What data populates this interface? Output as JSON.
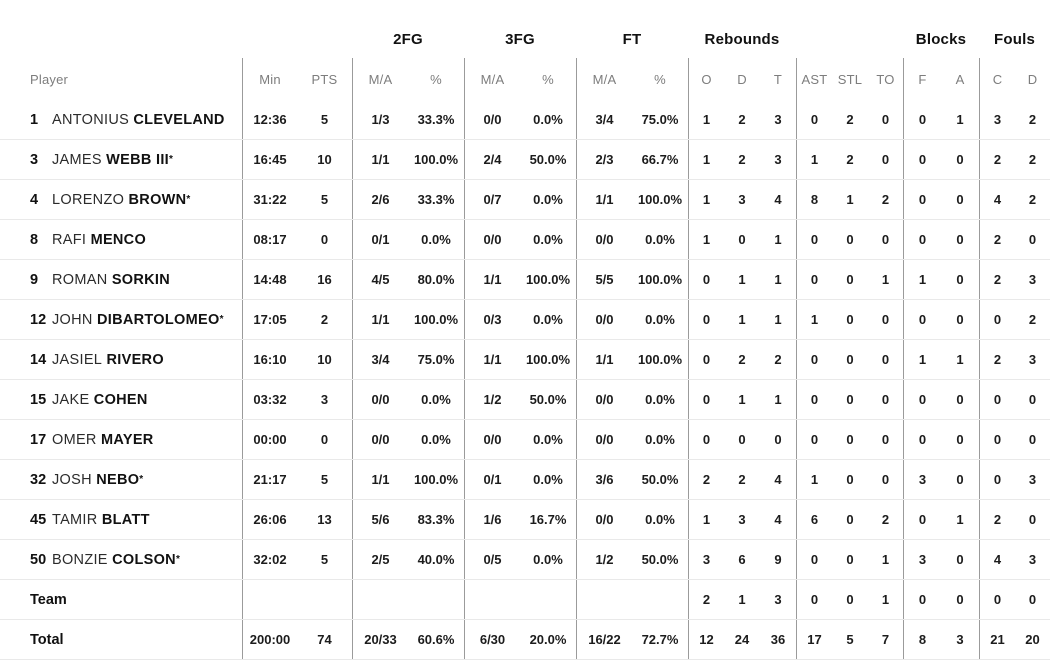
{
  "table": {
    "group_headers": {
      "fg2": "2FG",
      "fg3": "3FG",
      "ft": "FT",
      "rebounds": "Rebounds",
      "blocks": "Blocks",
      "fouls": "Fouls"
    },
    "sub_headers": {
      "player": "Player",
      "min": "Min",
      "pts": "PTS",
      "fg2_ma": "M/A",
      "fg2_pct": "%",
      "fg3_ma": "M/A",
      "fg3_pct": "%",
      "ft_ma": "M/A",
      "ft_pct": "%",
      "reb_o": "O",
      "reb_d": "D",
      "reb_t": "T",
      "ast": "AST",
      "stl": "STL",
      "to": "TO",
      "blk_f": "F",
      "blk_a": "A",
      "foul_c": "C",
      "foul_d": "D"
    },
    "players": [
      {
        "num": "1",
        "first": "ANTONIUS",
        "last": "CLEVELAND",
        "starter": false,
        "min": "12:36",
        "pts": "5",
        "fg2": "1/3",
        "fg2p": "33.3%",
        "fg3": "0/0",
        "fg3p": "0.0%",
        "ft": "3/4",
        "ftp": "75.0%",
        "ro": "1",
        "rd": "2",
        "rt": "3",
        "ast": "0",
        "stl": "2",
        "to": "0",
        "bf": "0",
        "ba": "1",
        "fc": "3",
        "fd": "2"
      },
      {
        "num": "3",
        "first": "JAMES",
        "last": "WEBB III",
        "starter": true,
        "min": "16:45",
        "pts": "10",
        "fg2": "1/1",
        "fg2p": "100.0%",
        "fg3": "2/4",
        "fg3p": "50.0%",
        "ft": "2/3",
        "ftp": "66.7%",
        "ro": "1",
        "rd": "2",
        "rt": "3",
        "ast": "1",
        "stl": "2",
        "to": "0",
        "bf": "0",
        "ba": "0",
        "fc": "2",
        "fd": "2"
      },
      {
        "num": "4",
        "first": "LORENZO",
        "last": "BROWN",
        "starter": true,
        "min": "31:22",
        "pts": "5",
        "fg2": "2/6",
        "fg2p": "33.3%",
        "fg3": "0/7",
        "fg3p": "0.0%",
        "ft": "1/1",
        "ftp": "100.0%",
        "ro": "1",
        "rd": "3",
        "rt": "4",
        "ast": "8",
        "stl": "1",
        "to": "2",
        "bf": "0",
        "ba": "0",
        "fc": "4",
        "fd": "2"
      },
      {
        "num": "8",
        "first": "RAFI",
        "last": "MENCO",
        "starter": false,
        "min": "08:17",
        "pts": "0",
        "fg2": "0/1",
        "fg2p": "0.0%",
        "fg3": "0/0",
        "fg3p": "0.0%",
        "ft": "0/0",
        "ftp": "0.0%",
        "ro": "1",
        "rd": "0",
        "rt": "1",
        "ast": "0",
        "stl": "0",
        "to": "0",
        "bf": "0",
        "ba": "0",
        "fc": "2",
        "fd": "0"
      },
      {
        "num": "9",
        "first": "ROMAN",
        "last": "SORKIN",
        "starter": false,
        "min": "14:48",
        "pts": "16",
        "fg2": "4/5",
        "fg2p": "80.0%",
        "fg3": "1/1",
        "fg3p": "100.0%",
        "ft": "5/5",
        "ftp": "100.0%",
        "ro": "0",
        "rd": "1",
        "rt": "1",
        "ast": "0",
        "stl": "0",
        "to": "1",
        "bf": "1",
        "ba": "0",
        "fc": "2",
        "fd": "3"
      },
      {
        "num": "12",
        "first": "JOHN",
        "last": "DIBARTOLOMEO",
        "starter": true,
        "min": "17:05",
        "pts": "2",
        "fg2": "1/1",
        "fg2p": "100.0%",
        "fg3": "0/3",
        "fg3p": "0.0%",
        "ft": "0/0",
        "ftp": "0.0%",
        "ro": "0",
        "rd": "1",
        "rt": "1",
        "ast": "1",
        "stl": "0",
        "to": "0",
        "bf": "0",
        "ba": "0",
        "fc": "0",
        "fd": "2"
      },
      {
        "num": "14",
        "first": "JASIEL",
        "last": "RIVERO",
        "starter": false,
        "min": "16:10",
        "pts": "10",
        "fg2": "3/4",
        "fg2p": "75.0%",
        "fg3": "1/1",
        "fg3p": "100.0%",
        "ft": "1/1",
        "ftp": "100.0%",
        "ro": "0",
        "rd": "2",
        "rt": "2",
        "ast": "0",
        "stl": "0",
        "to": "0",
        "bf": "1",
        "ba": "1",
        "fc": "2",
        "fd": "3"
      },
      {
        "num": "15",
        "first": "JAKE",
        "last": "COHEN",
        "starter": false,
        "min": "03:32",
        "pts": "3",
        "fg2": "0/0",
        "fg2p": "0.0%",
        "fg3": "1/2",
        "fg3p": "50.0%",
        "ft": "0/0",
        "ftp": "0.0%",
        "ro": "0",
        "rd": "1",
        "rt": "1",
        "ast": "0",
        "stl": "0",
        "to": "0",
        "bf": "0",
        "ba": "0",
        "fc": "0",
        "fd": "0"
      },
      {
        "num": "17",
        "first": "OMER",
        "last": "MAYER",
        "starter": false,
        "min": "00:00",
        "pts": "0",
        "fg2": "0/0",
        "fg2p": "0.0%",
        "fg3": "0/0",
        "fg3p": "0.0%",
        "ft": "0/0",
        "ftp": "0.0%",
        "ro": "0",
        "rd": "0",
        "rt": "0",
        "ast": "0",
        "stl": "0",
        "to": "0",
        "bf": "0",
        "ba": "0",
        "fc": "0",
        "fd": "0"
      },
      {
        "num": "32",
        "first": "JOSH",
        "last": "NEBO",
        "starter": true,
        "min": "21:17",
        "pts": "5",
        "fg2": "1/1",
        "fg2p": "100.0%",
        "fg3": "0/1",
        "fg3p": "0.0%",
        "ft": "3/6",
        "ftp": "50.0%",
        "ro": "2",
        "rd": "2",
        "rt": "4",
        "ast": "1",
        "stl": "0",
        "to": "0",
        "bf": "3",
        "ba": "0",
        "fc": "0",
        "fd": "3"
      },
      {
        "num": "45",
        "first": "TAMIR",
        "last": "BLATT",
        "starter": false,
        "min": "26:06",
        "pts": "13",
        "fg2": "5/6",
        "fg2p": "83.3%",
        "fg3": "1/6",
        "fg3p": "16.7%",
        "ft": "0/0",
        "ftp": "0.0%",
        "ro": "1",
        "rd": "3",
        "rt": "4",
        "ast": "6",
        "stl": "0",
        "to": "2",
        "bf": "0",
        "ba": "1",
        "fc": "2",
        "fd": "0"
      },
      {
        "num": "50",
        "first": "BONZIE",
        "last": "COLSON",
        "starter": true,
        "min": "32:02",
        "pts": "5",
        "fg2": "2/5",
        "fg2p": "40.0%",
        "fg3": "0/5",
        "fg3p": "0.0%",
        "ft": "1/2",
        "ftp": "50.0%",
        "ro": "3",
        "rd": "6",
        "rt": "9",
        "ast": "0",
        "stl": "0",
        "to": "1",
        "bf": "3",
        "ba": "0",
        "fc": "4",
        "fd": "3"
      }
    ],
    "team_row": {
      "label": "Team",
      "min": "",
      "pts": "",
      "fg2": "",
      "fg2p": "",
      "fg3": "",
      "fg3p": "",
      "ft": "",
      "ftp": "",
      "ro": "2",
      "rd": "1",
      "rt": "3",
      "ast": "0",
      "stl": "0",
      "to": "1",
      "bf": "0",
      "ba": "0",
      "fc": "0",
      "fd": "0"
    },
    "total_row": {
      "label": "Total",
      "min": "200:00",
      "pts": "74",
      "fg2": "20/33",
      "fg2p": "60.6%",
      "fg3": "6/30",
      "fg3p": "20.0%",
      "ft": "16/22",
      "ftp": "72.7%",
      "ro": "12",
      "rd": "24",
      "rt": "36",
      "ast": "17",
      "stl": "5",
      "to": "7",
      "bf": "8",
      "ba": "3",
      "fc": "21",
      "fd": "20"
    }
  },
  "colors": {
    "text_dark": "#1a1a1a",
    "text_gray": "#7d7d7d",
    "divider_vertical": "#9b9b9b",
    "divider_row": "#e9e9e9",
    "background": "#ffffff"
  },
  "starter_mark": "*"
}
